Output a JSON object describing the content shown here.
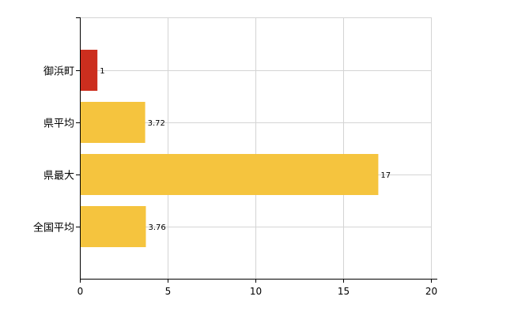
{
  "chart_data": {
    "type": "bar",
    "orientation": "horizontal",
    "title": "",
    "xlabel": "",
    "ylabel": "",
    "categories": [
      "御浜町",
      "県平均",
      "県最大",
      "全国平均"
    ],
    "values": [
      1,
      3.72,
      17,
      3.76
    ],
    "data_labels": [
      "1",
      "3.72",
      "17",
      "3.76"
    ],
    "bar_colors": [
      "#cc2e1e",
      "#f5c43e",
      "#f5c43e",
      "#f5c43e"
    ],
    "xlim": [
      0,
      20
    ],
    "x_ticks": [
      0,
      5,
      10,
      15,
      20
    ],
    "x_tick_labels": [
      "0",
      "5",
      "10",
      "15",
      "20"
    ],
    "grid": true,
    "legend": "none"
  }
}
